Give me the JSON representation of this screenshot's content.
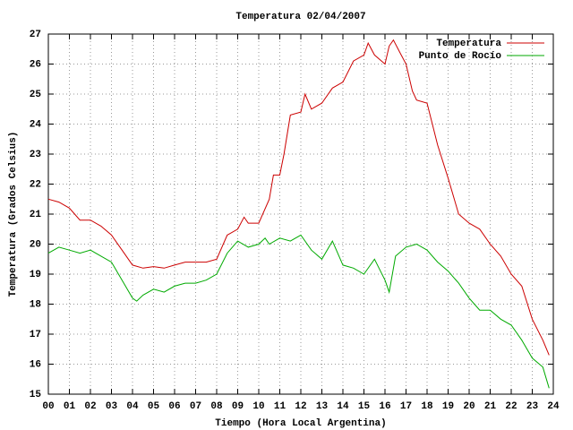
{
  "chart_data": {
    "type": "line",
    "title": "Temperatura 02/04/2007",
    "xlabel": "Tiempo (Hora Local Argentina)",
    "ylabel": "Temperatura (Grados Celsius)",
    "xlim": [
      0,
      24
    ],
    "ylim": [
      15,
      27
    ],
    "xticks": [
      {
        "value": 0,
        "label": "00"
      },
      {
        "value": 1,
        "label": "01"
      },
      {
        "value": 2,
        "label": "02"
      },
      {
        "value": 3,
        "label": "03"
      },
      {
        "value": 4,
        "label": "04"
      },
      {
        "value": 5,
        "label": "05"
      },
      {
        "value": 6,
        "label": "06"
      },
      {
        "value": 7,
        "label": "07"
      },
      {
        "value": 8,
        "label": "08"
      },
      {
        "value": 9,
        "label": "09"
      },
      10,
      11,
      12,
      13,
      14,
      15,
      16,
      17,
      18,
      19,
      20,
      21,
      22,
      23,
      24
    ],
    "yticks": [
      15,
      16,
      17,
      18,
      19,
      20,
      21,
      22,
      23,
      24,
      25,
      26,
      27
    ],
    "grid": true,
    "legend": "top-right",
    "series": [
      {
        "name": "Temperatura",
        "color": "#cc0000",
        "x": [
          0,
          0.5,
          1,
          1.5,
          2,
          2.5,
          3,
          3.5,
          4,
          4.5,
          5,
          5.5,
          6,
          6.5,
          7,
          7.5,
          8,
          8.5,
          9,
          9.3,
          9.5,
          10,
          10.5,
          10.7,
          11,
          11.2,
          11.5,
          12,
          12.2,
          12.5,
          13,
          13.5,
          14,
          14.5,
          15,
          15.2,
          15.5,
          16,
          16.2,
          16.4,
          16.7,
          17,
          17.3,
          17.5,
          18,
          18.5,
          19,
          19.5,
          20,
          20.5,
          21,
          21.5,
          22,
          22.5,
          23,
          23.5,
          23.8
        ],
        "values": [
          21.5,
          21.4,
          21.2,
          20.8,
          20.8,
          20.6,
          20.3,
          19.8,
          19.3,
          19.2,
          19.25,
          19.2,
          19.3,
          19.4,
          19.4,
          19.4,
          19.5,
          20.3,
          20.5,
          20.9,
          20.7,
          20.7,
          21.5,
          22.3,
          22.3,
          23.0,
          24.3,
          24.4,
          25.0,
          24.5,
          24.7,
          25.2,
          25.4,
          26.1,
          26.3,
          26.7,
          26.3,
          26.0,
          26.6,
          26.8,
          26.4,
          26.0,
          25.1,
          24.8,
          24.7,
          23.3,
          22.2,
          21.0,
          20.7,
          20.5,
          20.0,
          19.6,
          19.0,
          18.6,
          17.5,
          16.8,
          16.3
        ]
      },
      {
        "name": "Punto de Rocío",
        "color": "#00aa00",
        "x": [
          0,
          0.5,
          1,
          1.5,
          2,
          2.5,
          3,
          3.5,
          4,
          4.2,
          4.5,
          5,
          5.5,
          6,
          6.5,
          7,
          7.5,
          8,
          8.5,
          9,
          9.5,
          10,
          10.3,
          10.5,
          11,
          11.5,
          12,
          12.5,
          13,
          13.5,
          14,
          14.5,
          15,
          15.5,
          16,
          16.2,
          16.5,
          17,
          17.5,
          18,
          18.5,
          19,
          19.5,
          20,
          20.5,
          21,
          21.5,
          22,
          22.5,
          23,
          23.5,
          23.8
        ],
        "values": [
          19.7,
          19.9,
          19.8,
          19.7,
          19.8,
          19.6,
          19.4,
          18.8,
          18.2,
          18.1,
          18.3,
          18.5,
          18.4,
          18.6,
          18.7,
          18.7,
          18.8,
          19.0,
          19.7,
          20.1,
          19.9,
          20.0,
          20.2,
          20.0,
          20.2,
          20.1,
          20.3,
          19.8,
          19.5,
          20.1,
          19.3,
          19.2,
          19.0,
          19.5,
          18.8,
          18.4,
          19.6,
          19.9,
          20.0,
          19.8,
          19.4,
          19.1,
          18.7,
          18.2,
          17.8,
          17.8,
          17.5,
          17.3,
          16.8,
          16.2,
          15.9,
          15.2
        ]
      }
    ]
  }
}
